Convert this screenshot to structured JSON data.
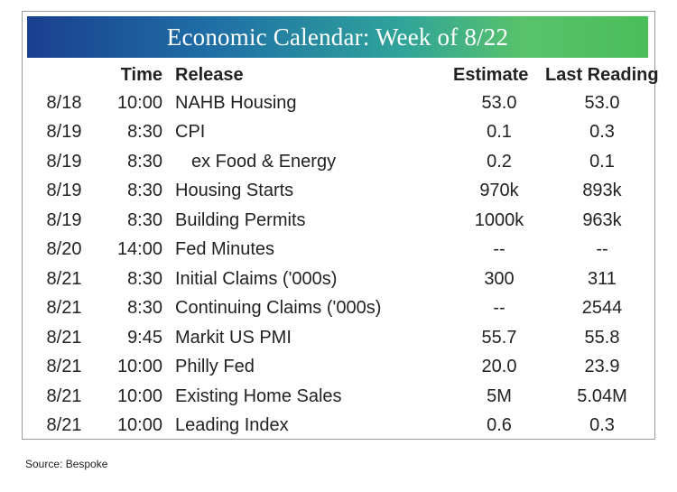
{
  "title": "Economic Calendar: Week of 8/22",
  "headers": {
    "date": "",
    "time": "Time",
    "release": "Release",
    "estimate": "Estimate",
    "last": "Last Reading"
  },
  "rows": [
    {
      "date": "8/18",
      "time": "10:00",
      "release": "NAHB Housing",
      "indent": false,
      "estimate": "53.0",
      "last": "53.0"
    },
    {
      "date": "8/19",
      "time": "8:30",
      "release": "CPI",
      "indent": false,
      "estimate": "0.1",
      "last": "0.3"
    },
    {
      "date": "8/19",
      "time": "8:30",
      "release": "ex Food & Energy",
      "indent": true,
      "estimate": "0.2",
      "last": "0.1"
    },
    {
      "date": "8/19",
      "time": "8:30",
      "release": "Housing Starts",
      "indent": false,
      "estimate": "970k",
      "last": "893k"
    },
    {
      "date": "8/19",
      "time": "8:30",
      "release": "Building Permits",
      "indent": false,
      "estimate": "1000k",
      "last": "963k"
    },
    {
      "date": "8/20",
      "time": "14:00",
      "release": "Fed Minutes",
      "indent": false,
      "estimate": "--",
      "last": "--"
    },
    {
      "date": "8/21",
      "time": "8:30",
      "release": "Initial Claims ('000s)",
      "indent": false,
      "estimate": "300",
      "last": "311"
    },
    {
      "date": "8/21",
      "time": "8:30",
      "release": "Continuing Claims ('000s)",
      "indent": false,
      "estimate": "--",
      "last": "2544"
    },
    {
      "date": "8/21",
      "time": "9:45",
      "release": "Markit US PMI",
      "indent": false,
      "estimate": "55.7",
      "last": "55.8"
    },
    {
      "date": "8/21",
      "time": "10:00",
      "release": "Philly Fed",
      "indent": false,
      "estimate": "20.0",
      "last": "23.9"
    },
    {
      "date": "8/21",
      "time": "10:00",
      "release": "Existing Home Sales",
      "indent": false,
      "estimate": "5M",
      "last": "5.04M"
    },
    {
      "date": "8/21",
      "time": "10:00",
      "release": "Leading Index",
      "indent": false,
      "estimate": "0.6",
      "last": "0.3"
    }
  ],
  "source": "Source:  Bespoke"
}
